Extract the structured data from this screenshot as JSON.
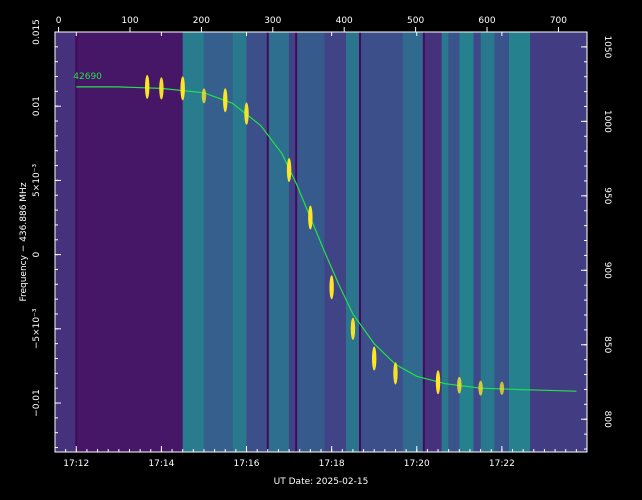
{
  "chart_data": {
    "type": "heatmap",
    "xlabel": "UT Date: 2025-02-15",
    "ylabel_left": "Frequency − 436.886 MHz",
    "x_bottom": {
      "range_minutes_utc": [
        "17:11:30",
        "17:24:00"
      ],
      "ticks": [
        "17:12",
        "17:14",
        "17:16",
        "17:18",
        "17:20",
        "17:22"
      ]
    },
    "x_top": {
      "range": [
        -5,
        740
      ],
      "ticks": [
        "0",
        "100",
        "200",
        "300",
        "400",
        "500",
        "600",
        "700"
      ]
    },
    "y_left": {
      "range": [
        -0.0133,
        0.015
      ],
      "ticks": [
        {
          "value": 0.015,
          "label": "0.015"
        },
        {
          "value": 0.01,
          "label": "0.01"
        },
        {
          "value": 0.005,
          "label": "5×10⁻³"
        },
        {
          "value": 0,
          "label": "0"
        },
        {
          "value": -0.005,
          "label": "−5×10⁻³"
        },
        {
          "value": -0.01,
          "label": "−0.01"
        }
      ]
    },
    "y_right": {
      "range": [
        778,
        1060
      ],
      "ticks": [
        "1050",
        "1000",
        "950",
        "900",
        "850",
        "800"
      ]
    },
    "colormap": "viridis",
    "background_color": "#000000",
    "fit_curve_color": "#22e24a",
    "signal_color": "#fde725",
    "satellite_label": "42690",
    "fit_curve": {
      "x_time": [
        "17:12:00",
        "17:13:00",
        "17:14:00",
        "17:15:00",
        "17:15:40",
        "17:16:20",
        "17:16:50",
        "17:17:10",
        "17:17:30",
        "17:17:50",
        "17:18:10",
        "17:18:30",
        "17:19:00",
        "17:19:30",
        "17:20:00",
        "17:20:40",
        "17:21:30",
        "17:22:30",
        "17:23:45"
      ],
      "y_freq": [
        0.0113,
        0.0113,
        0.0112,
        0.0109,
        0.0102,
        0.0087,
        0.0068,
        0.0048,
        0.0025,
        0.0002,
        -0.002,
        -0.004,
        -0.006,
        -0.0074,
        -0.0082,
        -0.0087,
        -0.009,
        -0.0091,
        -0.0092
      ]
    },
    "signal_marks": [
      {
        "x_time": "17:13:40",
        "y_freq": 0.0113,
        "strength": 1.0
      },
      {
        "x_time": "17:14:00",
        "y_freq": 0.0112,
        "strength": 0.9
      },
      {
        "x_time": "17:14:30",
        "y_freq": 0.0112,
        "strength": 1.0
      },
      {
        "x_time": "17:15:00",
        "y_freq": 0.0107,
        "strength": 0.5
      },
      {
        "x_time": "17:15:30",
        "y_freq": 0.0104,
        "strength": 1.0
      },
      {
        "x_time": "17:16:00",
        "y_freq": 0.0095,
        "strength": 0.9
      },
      {
        "x_time": "17:17:00",
        "y_freq": 0.0057,
        "strength": 1.0
      },
      {
        "x_time": "17:17:30",
        "y_freq": 0.0025,
        "strength": 1.0
      },
      {
        "x_time": "17:18:00",
        "y_freq": -0.0022,
        "strength": 1.0
      },
      {
        "x_time": "17:18:30",
        "y_freq": -0.005,
        "strength": 0.9
      },
      {
        "x_time": "17:19:00",
        "y_freq": -0.007,
        "strength": 1.0
      },
      {
        "x_time": "17:19:30",
        "y_freq": -0.008,
        "strength": 0.9
      },
      {
        "x_time": "17:20:30",
        "y_freq": -0.0086,
        "strength": 1.0
      },
      {
        "x_time": "17:21:00",
        "y_freq": -0.0088,
        "strength": 0.6
      },
      {
        "x_time": "17:21:30",
        "y_freq": -0.009,
        "strength": 0.5
      },
      {
        "x_time": "17:22:00",
        "y_freq": -0.009,
        "strength": 0.4
      }
    ],
    "bands": [
      {
        "start": "17:11:30",
        "end": "17:12:00",
        "level": 0.14
      },
      {
        "start": "17:12:00",
        "end": "17:14:30",
        "level": 0.06
      },
      {
        "start": "17:14:30",
        "end": "17:15:00",
        "level": 0.42
      },
      {
        "start": "17:15:00",
        "end": "17:15:40",
        "level": 0.3
      },
      {
        "start": "17:15:40",
        "end": "17:16:00",
        "level": 0.4
      },
      {
        "start": "17:16:00",
        "end": "17:16:30",
        "level": 0.24
      },
      {
        "start": "17:16:30",
        "end": "17:17:00",
        "level": 0.36
      },
      {
        "start": "17:17:00",
        "end": "17:17:10",
        "level": 0.2
      },
      {
        "start": "17:17:10",
        "end": "17:17:50",
        "level": 0.28
      },
      {
        "start": "17:17:50",
        "end": "17:18:20",
        "level": 0.2
      },
      {
        "start": "17:18:20",
        "end": "17:18:40",
        "level": 0.38
      },
      {
        "start": "17:18:40",
        "end": "17:19:40",
        "level": 0.24
      },
      {
        "start": "17:19:40",
        "end": "17:20:10",
        "level": 0.34
      },
      {
        "start": "17:20:10",
        "end": "17:20:35",
        "level": 0.14
      },
      {
        "start": "17:20:35",
        "end": "17:20:45",
        "level": 0.4
      },
      {
        "start": "17:20:45",
        "end": "17:21:00",
        "level": 0.26
      },
      {
        "start": "17:21:00",
        "end": "17:21:20",
        "level": 0.44
      },
      {
        "start": "17:21:20",
        "end": "17:21:30",
        "level": 0.22
      },
      {
        "start": "17:21:30",
        "end": "17:21:50",
        "level": 0.4
      },
      {
        "start": "17:21:50",
        "end": "17:22:10",
        "level": 0.26
      },
      {
        "start": "17:22:10",
        "end": "17:22:40",
        "level": 0.44
      },
      {
        "start": "17:22:40",
        "end": "17:24:00",
        "level": 0.18
      }
    ],
    "dark_stripes": [
      "17:12:00",
      "17:16:30",
      "17:17:10",
      "17:18:40",
      "17:20:10"
    ],
    "grid": false,
    "legend": "none"
  }
}
